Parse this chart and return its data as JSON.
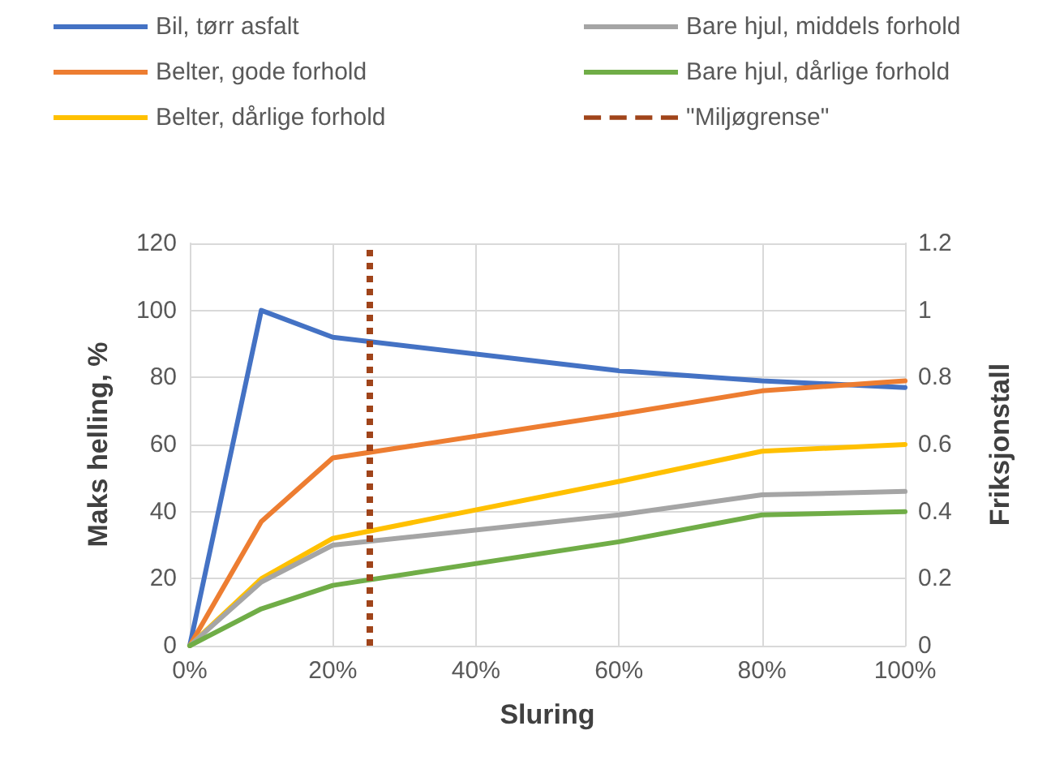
{
  "chart_data": {
    "type": "line",
    "xlabel": "Sluring",
    "ylabel": "Maks helling, %",
    "y2label": "Friksjonstall",
    "x": [
      0,
      10,
      20,
      60,
      80,
      100
    ],
    "series": [
      {
        "name": "Bil, tørr asfalt",
        "color": "#4472c4",
        "values": [
          0,
          100,
          92,
          82,
          79,
          77
        ]
      },
      {
        "name": "Belter, gode forhold",
        "color": "#ed7d31",
        "values": [
          0,
          37,
          56,
          69,
          76,
          79
        ]
      },
      {
        "name": "Belter, dårlige forhold",
        "color": "#ffc000",
        "values": [
          0,
          20,
          32,
          49,
          58,
          60
        ]
      },
      {
        "name": "Bare hjul, middels forhold",
        "color": "#a5a5a5",
        "values": [
          0,
          19,
          30,
          39,
          45,
          46
        ]
      },
      {
        "name": "Bare hjul, dårlige forhold",
        "color": "#70ad47",
        "values": [
          0,
          11,
          18,
          31,
          39,
          40
        ]
      }
    ],
    "ref_lines": [
      {
        "axis": "x",
        "value": 25,
        "label": "\"Miljøgrense\"",
        "color": "#a0441a",
        "line_style": "dotted"
      }
    ],
    "xlim": [
      0,
      100
    ],
    "xticks": [
      {
        "value": 0,
        "label": "0%"
      },
      {
        "value": 20,
        "label": "20%"
      },
      {
        "value": 40,
        "label": "40%"
      },
      {
        "value": 60,
        "label": "60%"
      },
      {
        "value": 80,
        "label": "80%"
      },
      {
        "value": 100,
        "label": "100%"
      }
    ],
    "ylim": [
      0,
      120
    ],
    "yticks": [
      0,
      20,
      40,
      60,
      80,
      100,
      120
    ],
    "y2lim": [
      0,
      1.2
    ],
    "y2ticks": [
      0,
      0.2,
      0.4,
      0.6,
      0.8,
      1,
      1.2
    ],
    "grid": true,
    "legend": "top",
    "marker": "none",
    "line_style": "solid"
  }
}
